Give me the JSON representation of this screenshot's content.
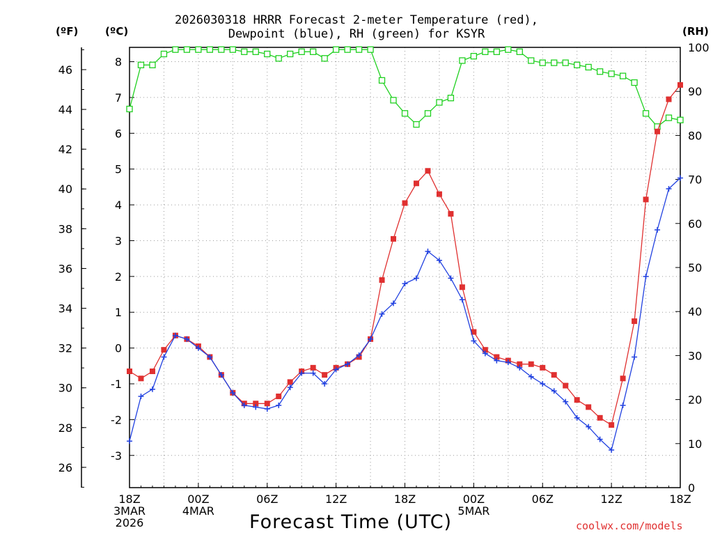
{
  "chart_data": {
    "type": "line",
    "title_line1": "2026030318 HRRR Forecast 2-meter Temperature (red),",
    "title_line2": "Dewpoint (blue), RH (green) for KSYR",
    "unit_f": "(ºF)",
    "unit_c": "(ºC)",
    "unit_rh": "(RH)",
    "xlabel": "Forecast Time (UTC)",
    "credit": "coolwx.com/models",
    "hours_range": [
      0,
      48
    ],
    "ylim_c": [
      -3.9,
      8.4
    ],
    "ylim_rh": [
      0,
      100
    ],
    "x_ticks": [
      {
        "h": 0,
        "lines": [
          "18Z",
          "3MAR",
          "2026"
        ]
      },
      {
        "h": 6,
        "lines": [
          "00Z",
          "4MAR"
        ]
      },
      {
        "h": 12,
        "lines": [
          "06Z"
        ]
      },
      {
        "h": 18,
        "lines": [
          "12Z"
        ]
      },
      {
        "h": 24,
        "lines": [
          "18Z"
        ]
      },
      {
        "h": 30,
        "lines": [
          "00Z",
          "5MAR"
        ]
      },
      {
        "h": 36,
        "lines": [
          "06Z"
        ]
      },
      {
        "h": 42,
        "lines": [
          "12Z"
        ]
      },
      {
        "h": 48,
        "lines": [
          "18Z"
        ]
      }
    ],
    "f_ticks": [
      "26",
      "28",
      "30",
      "32",
      "34",
      "36",
      "38",
      "40",
      "42",
      "44",
      "46"
    ],
    "c_ticks": [
      "-3",
      "-2",
      "-1",
      "0",
      "1",
      "2",
      "3",
      "4",
      "5",
      "6",
      "7",
      "8"
    ],
    "rh_ticks": [
      "0",
      "10",
      "20",
      "30",
      "40",
      "50",
      "60",
      "70",
      "80",
      "90",
      "100"
    ],
    "colors": {
      "temperature": "#e03030",
      "dewpoint": "#2040e0",
      "rh": "#20d020",
      "grid": "#9a9a9a"
    },
    "series": [
      {
        "name": "Temperature",
        "units": "C",
        "values": [
          -0.65,
          -0.85,
          -0.65,
          -0.05,
          0.35,
          0.25,
          0.05,
          -0.25,
          -0.75,
          -1.25,
          -1.55,
          -1.55,
          -1.55,
          -1.35,
          -0.95,
          -0.65,
          -0.55,
          -0.75,
          -0.55,
          -0.45,
          -0.25,
          0.25,
          1.9,
          3.05,
          4.05,
          4.6,
          4.95,
          4.3,
          3.75,
          1.7,
          0.45,
          -0.05,
          -0.25,
          -0.35,
          -0.45,
          -0.45,
          -0.55,
          -0.75,
          -1.05,
          -1.45,
          -1.65,
          -1.95,
          -2.15,
          -0.85,
          0.75,
          4.15,
          6.05,
          6.95,
          7.35
        ]
      },
      {
        "name": "Dewpoint",
        "units": "C",
        "values": [
          -2.6,
          -1.35,
          -1.15,
          -0.25,
          0.35,
          0.25,
          0.0,
          -0.25,
          -0.75,
          -1.25,
          -1.6,
          -1.65,
          -1.7,
          -1.6,
          -1.1,
          -0.7,
          -0.7,
          -1.0,
          -0.6,
          -0.45,
          -0.2,
          0.25,
          0.95,
          1.25,
          1.8,
          1.95,
          2.7,
          2.45,
          1.95,
          1.35,
          0.2,
          -0.15,
          -0.35,
          -0.4,
          -0.55,
          -0.8,
          -1.0,
          -1.2,
          -1.5,
          -1.95,
          -2.2,
          -2.55,
          -2.85,
          -1.6,
          -0.25,
          2.0,
          3.3,
          4.45,
          4.75
        ]
      },
      {
        "name": "RH",
        "units": "%",
        "values": [
          86,
          96,
          96,
          98.5,
          99.5,
          99.5,
          99.5,
          99.5,
          99.5,
          99.5,
          99,
          99,
          98.5,
          97.5,
          98.5,
          99,
          99,
          97.5,
          99.5,
          99.5,
          99.5,
          99.5,
          92.5,
          88,
          85,
          82.5,
          85,
          87.5,
          88.5,
          97,
          98,
          99,
          99,
          99.5,
          99,
          97,
          96.5,
          96.5,
          96.5,
          96,
          95.5,
          94.5,
          94,
          93.5,
          92,
          85,
          82,
          84,
          83.5
        ]
      }
    ]
  }
}
